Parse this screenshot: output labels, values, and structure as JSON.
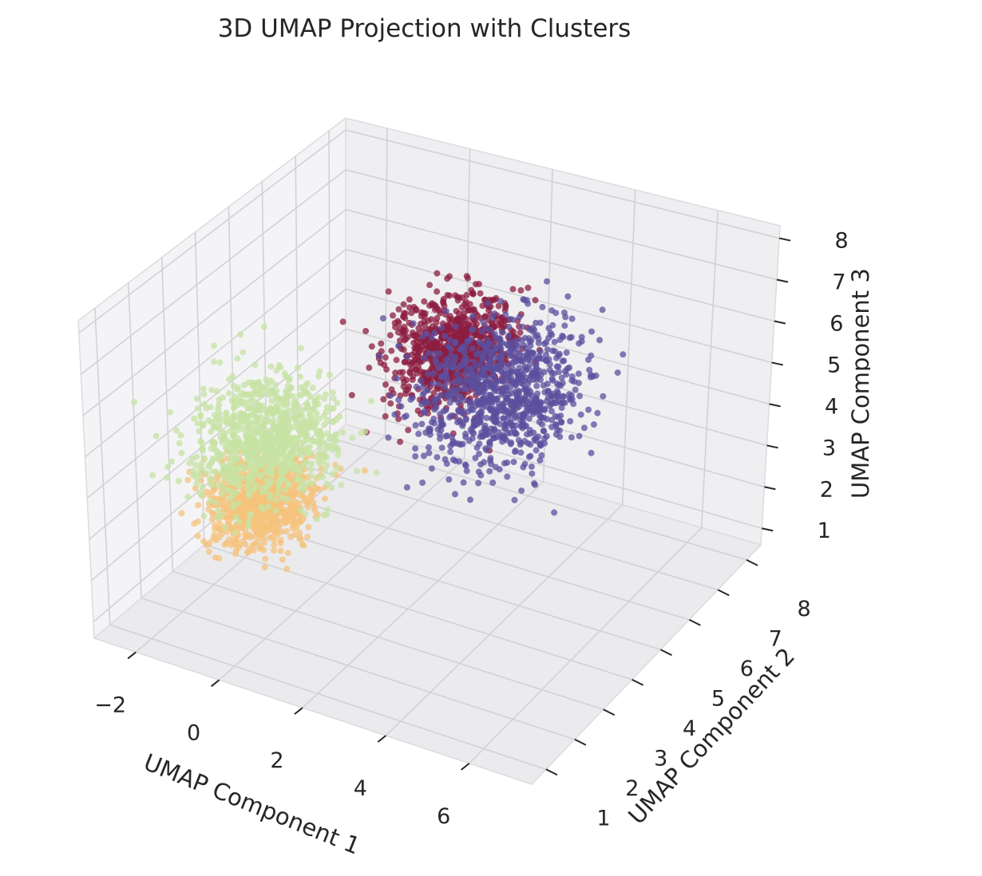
{
  "chart_data": {
    "type": "scatter",
    "dimensions": 3,
    "title": "3D UMAP Projection with Clusters",
    "xlabel": "UMAP Component 1",
    "ylabel": "UMAP Component 2",
    "zlabel": "UMAP Component 3",
    "xlim": [
      -3,
      7.5
    ],
    "ylim": [
      0.5,
      8.5
    ],
    "zlim": [
      0.6,
      8.3
    ],
    "x_ticks": [
      "−2",
      "0",
      "2",
      "4",
      "6"
    ],
    "y_ticks": [
      "1",
      "2",
      "3",
      "4",
      "5",
      "6",
      "7",
      "8"
    ],
    "z_ticks": [
      "1",
      "2",
      "3",
      "4",
      "5",
      "6",
      "7",
      "8"
    ],
    "grid": true,
    "legend": "none",
    "background": "#eaeaf2",
    "series": [
      {
        "color": "#8c1d40",
        "center": {
          "x": 1.5,
          "y": 6.2,
          "z": 5.2
        },
        "spread": 1.1
      },
      {
        "color": "#5b4f9e",
        "center": {
          "x": 3.0,
          "y": 5.8,
          "z": 4.9
        },
        "spread": 1.5
      },
      {
        "color": "#f6c37c",
        "center": {
          "x": -1.0,
          "y": 3.2,
          "z": 2.8
        },
        "spread": 0.9
      },
      {
        "color": "#c7e3a4",
        "center": {
          "x": -1.2,
          "y": 3.6,
          "z": 4.0
        },
        "spread": 1.3
      }
    ]
  }
}
